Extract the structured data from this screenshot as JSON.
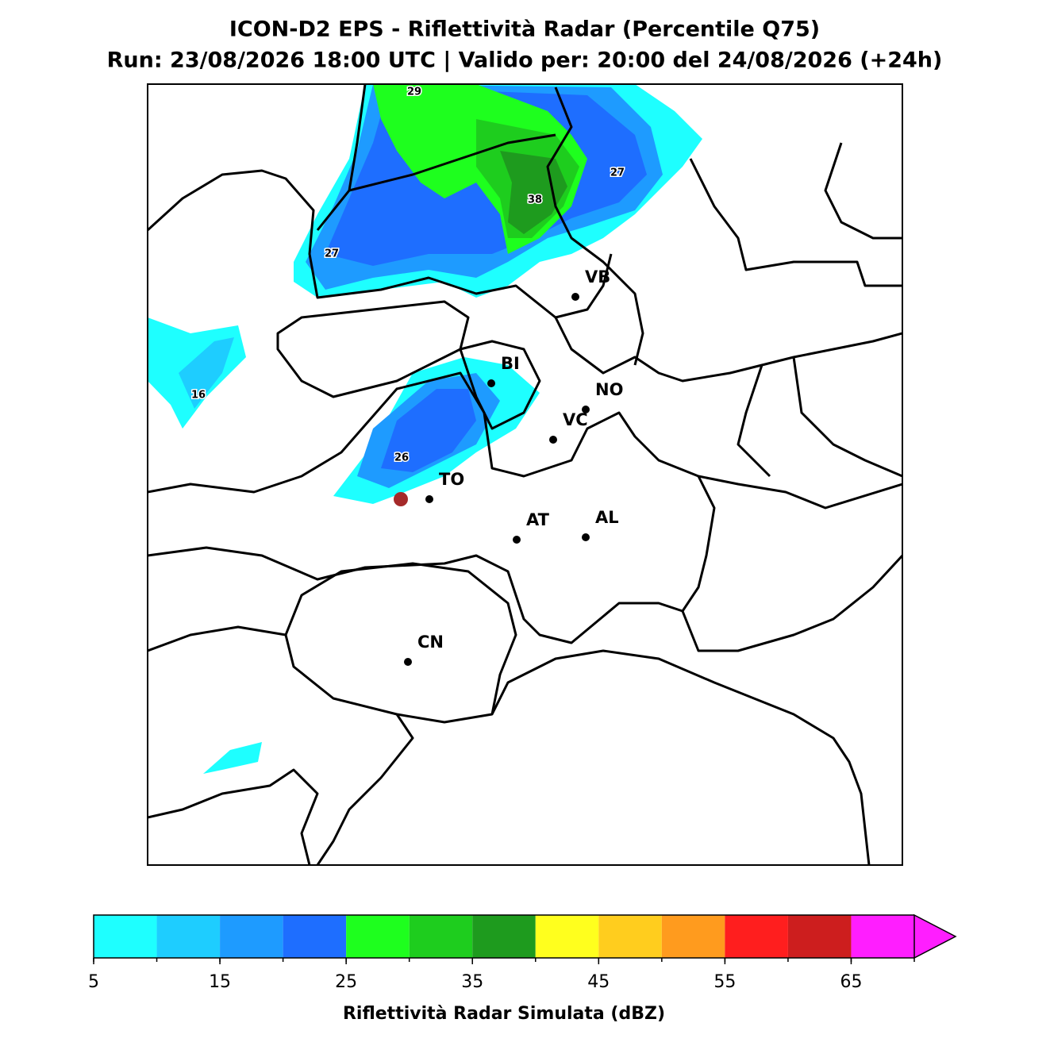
{
  "title_line1": "ICON-D2 EPS - Riflettività Radar (Percentile Q75)",
  "title_line2": "Run: 23/08/2026 18:00 UTC | Valido per: 20:00 del 24/08/2026 (+24h)",
  "cities": [
    "VB",
    "BI",
    "NO",
    "VC",
    "TO",
    "AT",
    "AL",
    "CN"
  ],
  "contour_labels": [
    29,
    27,
    38,
    27,
    16,
    26
  ],
  "colorbar": {
    "label": "Riflettività Radar Simulata (dBZ)",
    "bins": [
      5,
      10,
      15,
      20,
      25,
      30,
      35,
      40,
      45,
      50,
      55,
      60,
      65,
      70
    ],
    "colors": [
      "#1effff",
      "#1ecdff",
      "#1e9bff",
      "#1e6eff",
      "#1eff1e",
      "#1ecd1e",
      "#1e9b1e",
      "#ffff1e",
      "#ffcd1e",
      "#ff9b1e",
      "#ff1e1e",
      "#cd1e1e",
      "#ff1eff"
    ],
    "ticks": [
      5,
      15,
      25,
      35,
      45,
      55,
      65
    ],
    "extend": "max"
  }
}
